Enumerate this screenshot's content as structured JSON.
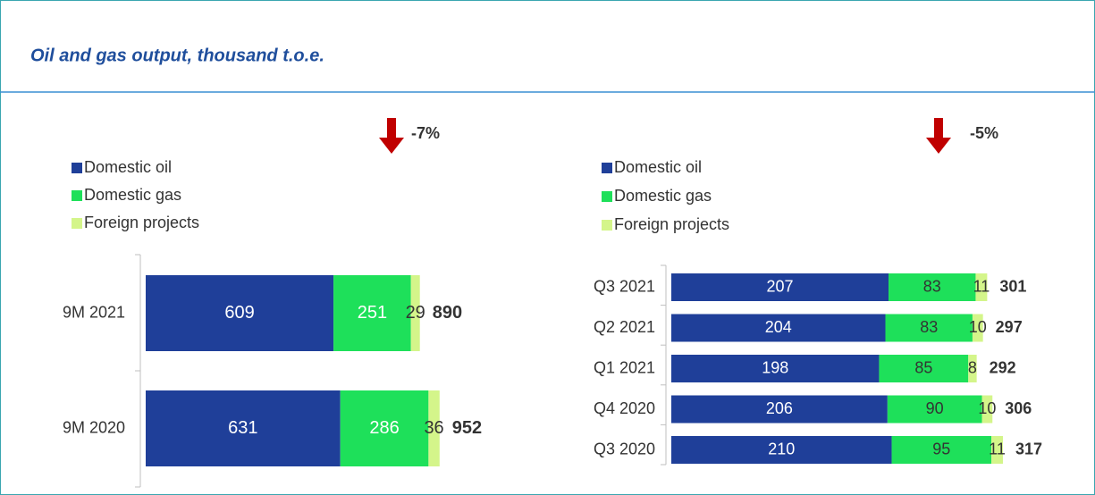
{
  "title": "Oil and gas output, thousand t.o.e.",
  "chart_data": [
    {
      "type": "bar",
      "orientation": "horizontal",
      "stacked": true,
      "annotation": "-7%",
      "categories": [
        "9M 2021",
        "9M 2020"
      ],
      "series": [
        {
          "name": "Domestic oil",
          "color": "#1f3f99",
          "values": [
            609,
            631
          ]
        },
        {
          "name": "Domestic gas",
          "color": "#1ee05a",
          "values": [
            251,
            286
          ]
        },
        {
          "name": "Foreign projects",
          "color": "#d4f58a",
          "values": [
            29,
            36
          ]
        }
      ],
      "totals": [
        890,
        952
      ]
    },
    {
      "type": "bar",
      "orientation": "horizontal",
      "stacked": true,
      "annotation": "-5%",
      "categories": [
        "Q3 2021",
        "Q2 2021",
        "Q1 2021",
        "Q4 2020",
        "Q3 2020"
      ],
      "series": [
        {
          "name": "Domestic oil",
          "color": "#1f3f99",
          "values": [
            207,
            204,
            198,
            206,
            210
          ]
        },
        {
          "name": "Domestic gas",
          "color": "#1ee05a",
          "values": [
            83,
            83,
            85,
            90,
            95
          ]
        },
        {
          "name": "Foreign projects",
          "color": "#d4f58a",
          "values": [
            11,
            10,
            8,
            10,
            11
          ]
        }
      ],
      "totals": [
        301,
        297,
        292,
        306,
        317
      ]
    }
  ]
}
